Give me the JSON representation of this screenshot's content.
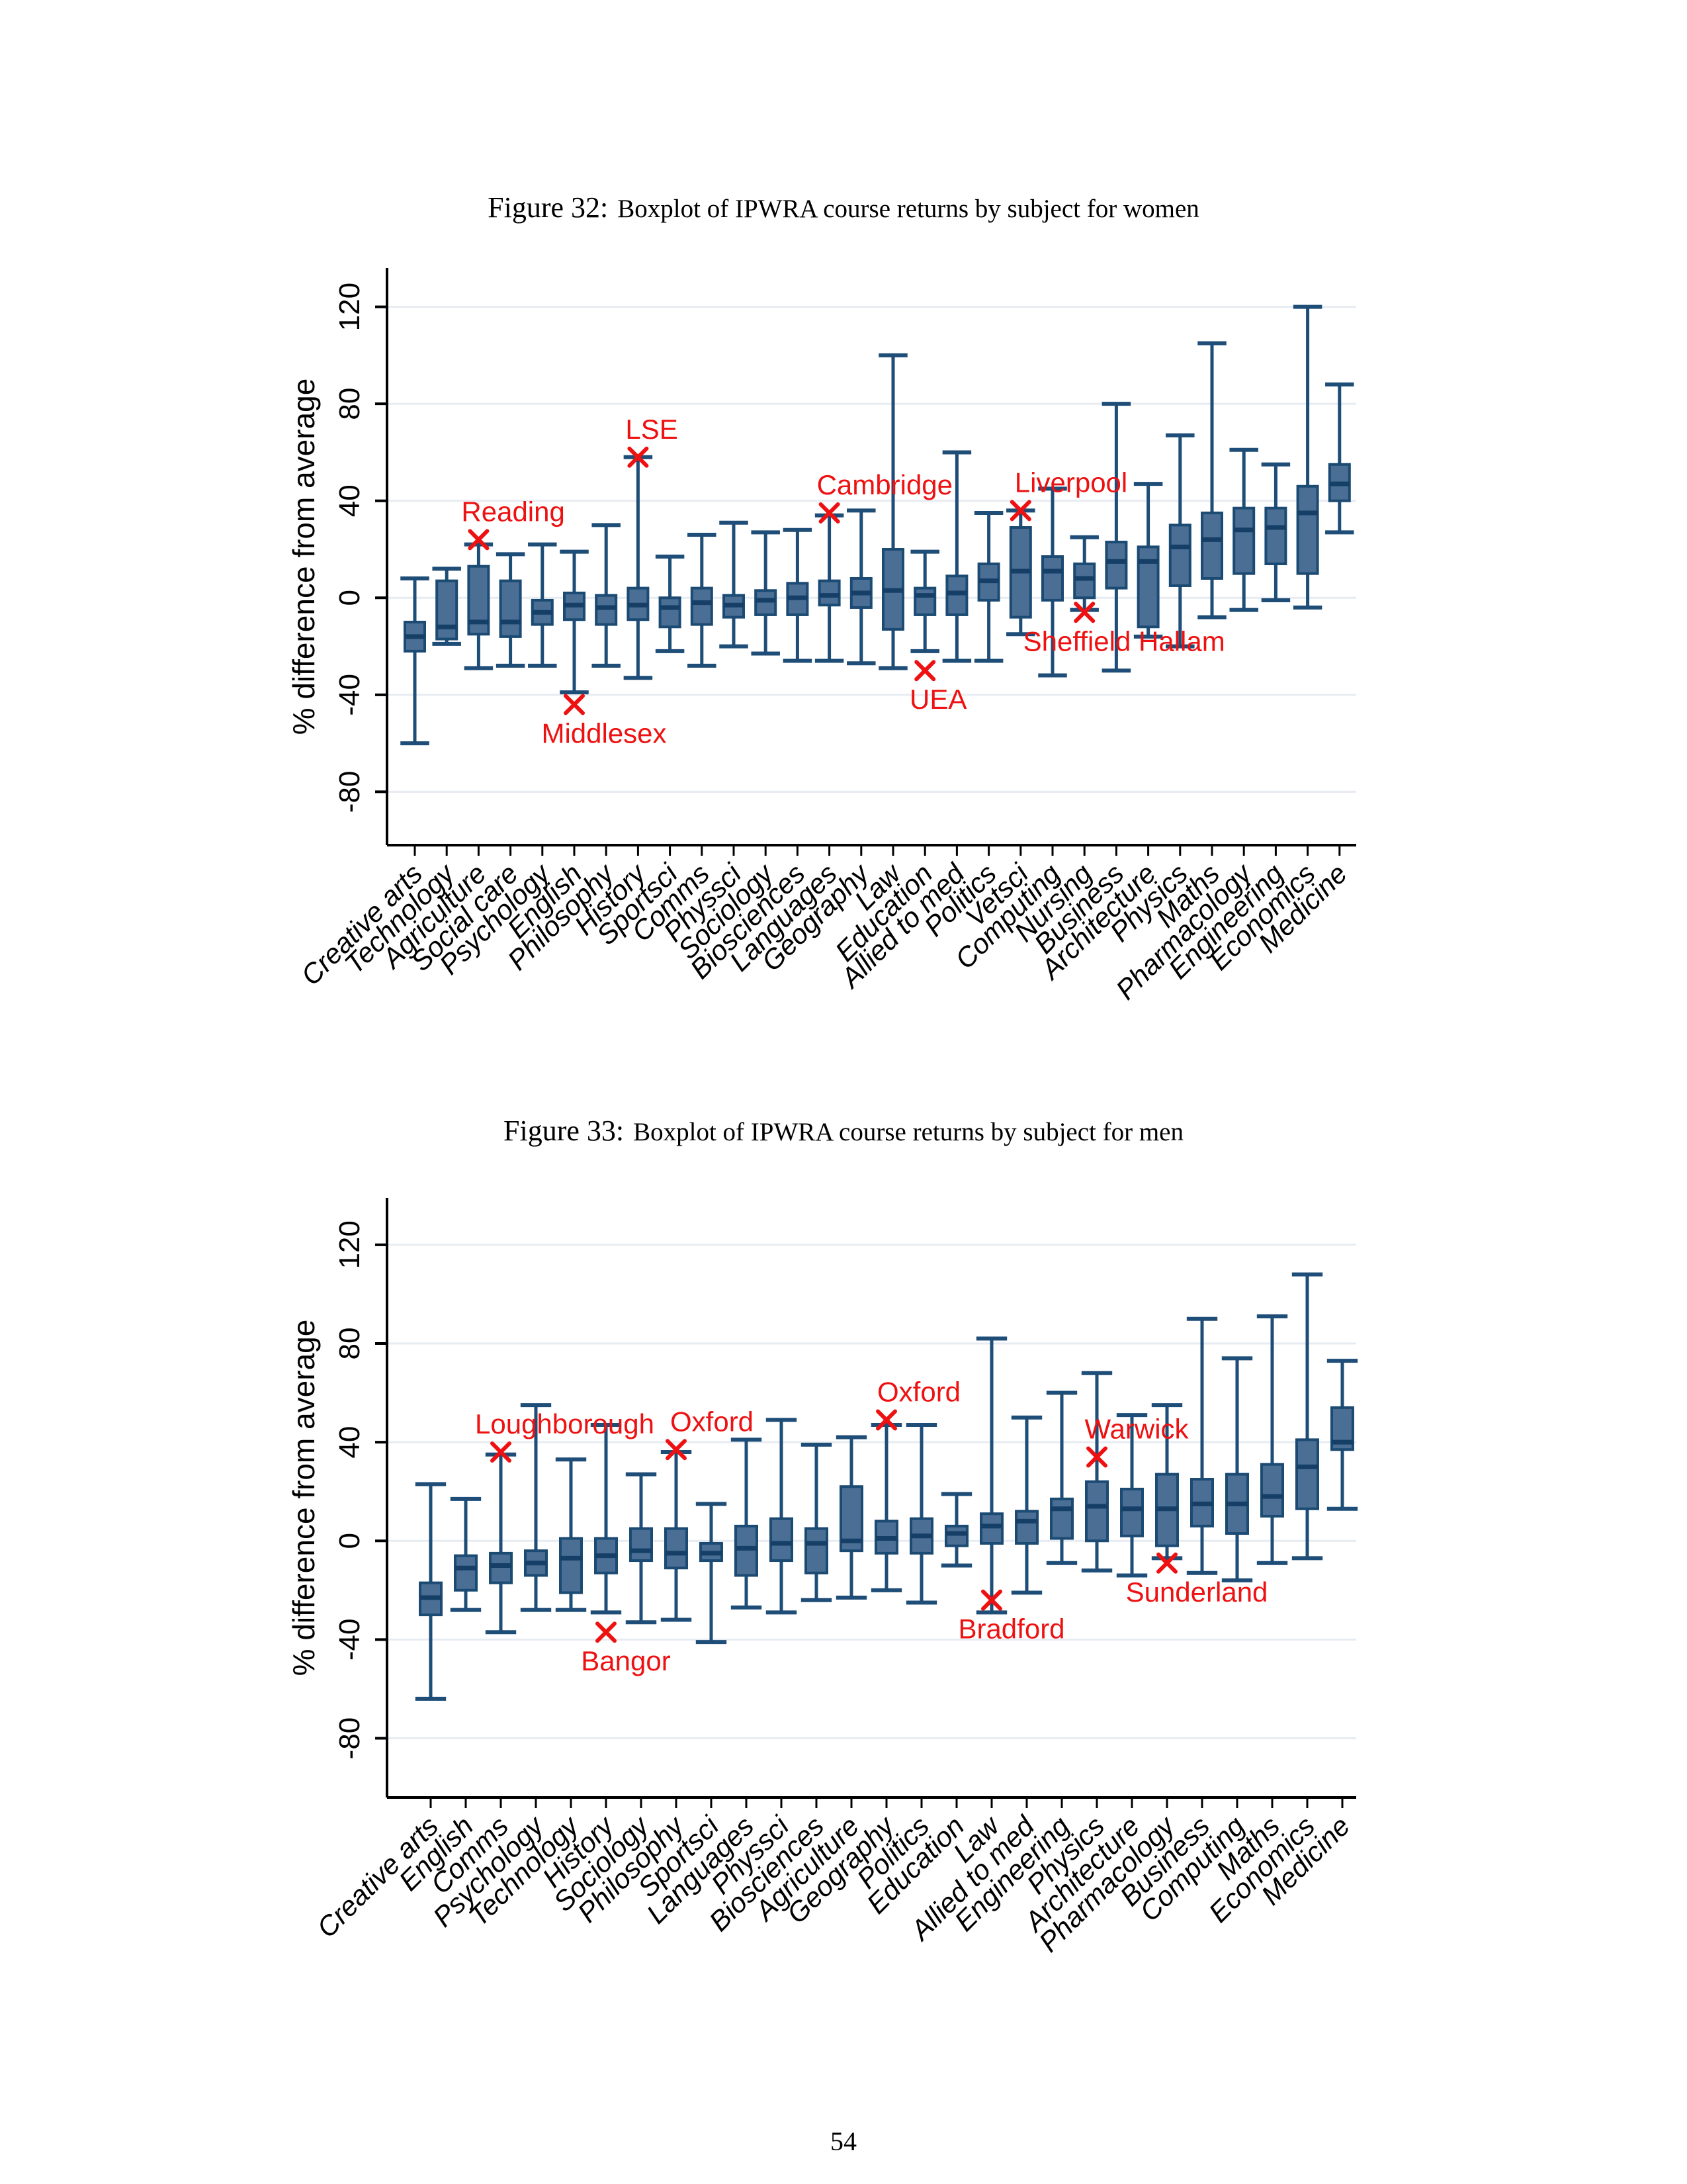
{
  "page": {
    "number": "54"
  },
  "colors": {
    "box_fill": "#4a6e94",
    "box_stroke": "#1b4a73",
    "median": "#153f66",
    "whisker": "#1e4d77",
    "gridline": "#e7ecf2",
    "axis": "#000000",
    "annotation": "#ee1111",
    "text": "#000000"
  },
  "figures": [
    {
      "caption_label": "Figure 32:",
      "caption_text": "Boxplot of IPWRA course returns by subject for women"
    },
    {
      "caption_label": "Figure 33:",
      "caption_text": "Boxplot of IPWRA course returns by subject for men"
    }
  ],
  "chart_data": [
    {
      "type": "boxplot",
      "title": "Figure 32: Boxplot of IPWRA course returns by subject for women",
      "xlabel": "",
      "ylabel": "% difference from average",
      "yticks": [
        120,
        80,
        40,
        0,
        -40,
        -80
      ],
      "ylim": [
        -102,
        136
      ],
      "grid": true,
      "legend": "none",
      "categories": [
        "Creative arts",
        "Technology",
        "Agriculture",
        "Social care",
        "Psychology",
        "English",
        "Philosophy",
        "History",
        "Sportsci",
        "Comms",
        "Physsci",
        "Sociology",
        "Biosciences",
        "Languages",
        "Geography",
        "Law",
        "Education",
        "Allied to med",
        "Politics",
        "Vetsci",
        "Computing",
        "Nursing",
        "Business",
        "Architecture",
        "Physics",
        "Maths",
        "Pharmacology",
        "Engineering",
        "Economics",
        "Medicine"
      ],
      "boxes": [
        {
          "low": -60,
          "q1": -22,
          "median": -16,
          "q3": -10,
          "high": 8
        },
        {
          "low": -19,
          "q1": -17,
          "median": -12,
          "q3": 7,
          "high": 12
        },
        {
          "low": -29,
          "q1": -15,
          "median": -10,
          "q3": 13,
          "high": 22
        },
        {
          "low": -28,
          "q1": -16,
          "median": -10,
          "q3": 7,
          "high": 18
        },
        {
          "low": -28,
          "q1": -11,
          "median": -6,
          "q3": -1,
          "high": 22
        },
        {
          "low": -39,
          "q1": -9,
          "median": -3,
          "q3": 2,
          "high": 19
        },
        {
          "low": -28,
          "q1": -11,
          "median": -4,
          "q3": 1,
          "high": 30
        },
        {
          "low": -33,
          "q1": -9,
          "median": -3,
          "q3": 4,
          "high": 58
        },
        {
          "low": -22,
          "q1": -12,
          "median": -4,
          "q3": 0,
          "high": 17
        },
        {
          "low": -28,
          "q1": -11,
          "median": -2,
          "q3": 4,
          "high": 26
        },
        {
          "low": -20,
          "q1": -8,
          "median": -3,
          "q3": 1,
          "high": 31
        },
        {
          "low": -23,
          "q1": -7,
          "median": -1,
          "q3": 3,
          "high": 27
        },
        {
          "low": -26,
          "q1": -7,
          "median": 0,
          "q3": 6,
          "high": 28
        },
        {
          "low": -26,
          "q1": -3,
          "median": 1,
          "q3": 7,
          "high": 34
        },
        {
          "low": -27,
          "q1": -4,
          "median": 2,
          "q3": 8,
          "high": 36
        },
        {
          "low": -29,
          "q1": -13,
          "median": 3,
          "q3": 20,
          "high": 100
        },
        {
          "low": -22,
          "q1": -7,
          "median": 1,
          "q3": 4,
          "high": 19
        },
        {
          "low": -26,
          "q1": -7,
          "median": 2,
          "q3": 9,
          "high": 60
        },
        {
          "low": -26,
          "q1": -1,
          "median": 7,
          "q3": 14,
          "high": 35
        },
        {
          "low": -15,
          "q1": -8,
          "median": 11,
          "q3": 29,
          "high": 36
        },
        {
          "low": -32,
          "q1": -1,
          "median": 11,
          "q3": 17,
          "high": 45
        },
        {
          "low": -5,
          "q1": 0,
          "median": 8,
          "q3": 14,
          "high": 25
        },
        {
          "low": -30,
          "q1": 4,
          "median": 15,
          "q3": 23,
          "high": 80
        },
        {
          "low": -16,
          "q1": -12,
          "median": 15,
          "q3": 21,
          "high": 47
        },
        {
          "low": -20,
          "q1": 5,
          "median": 21,
          "q3": 30,
          "high": 67
        },
        {
          "low": -8,
          "q1": 8,
          "median": 24,
          "q3": 35,
          "high": 105
        },
        {
          "low": -5,
          "q1": 10,
          "median": 28,
          "q3": 37,
          "high": 61
        },
        {
          "low": -1,
          "q1": 14,
          "median": 29,
          "q3": 37,
          "high": 55
        },
        {
          "low": -4,
          "q1": 10,
          "median": 35,
          "q3": 46,
          "high": 120
        },
        {
          "low": 27,
          "q1": 40,
          "median": 47,
          "q3": 55,
          "high": 88
        }
      ],
      "outliers": [
        {
          "label": "Reading",
          "category": "Agriculture",
          "value": 24,
          "side": "above",
          "align": "start",
          "dx": -12
        },
        {
          "label": "Middlesex",
          "category": "English",
          "value": -44,
          "side": "below",
          "align": "middle",
          "dx": 45
        },
        {
          "label": "LSE",
          "category": "History",
          "value": 58,
          "side": "above",
          "align": "start",
          "dx": -5
        },
        {
          "label": "Cambridge",
          "category": "Languages",
          "value": 35,
          "side": "above",
          "align": "start",
          "dx": -5
        },
        {
          "label": "UEA",
          "category": "Education",
          "value": -30,
          "side": "below",
          "align": "middle",
          "dx": 20
        },
        {
          "label": "Liverpool",
          "category": "Vetsci",
          "value": 36,
          "side": "above",
          "align": "start",
          "dx": 5
        },
        {
          "label": "Sheffield Hallam",
          "category": "Nursing",
          "value": -6,
          "side": "below",
          "align": "middle",
          "dx": 60
        }
      ]
    },
    {
      "type": "boxplot",
      "title": "Figure 33: Boxplot of IPWRA course returns by subject for men",
      "xlabel": "",
      "ylabel": "% difference from average",
      "yticks": [
        120,
        80,
        40,
        0,
        -40,
        -80
      ],
      "ylim": [
        -104,
        139
      ],
      "grid": true,
      "legend": "none",
      "categories": [
        "Creative arts",
        "English",
        "Comms",
        "Psychology",
        "Technology",
        "History",
        "Sociology",
        "Philosophy",
        "Sportsci",
        "Languages",
        "Physsci",
        "Biosciences",
        "Agriculture",
        "Geography",
        "Politics",
        "Education",
        "Law",
        "Allied to med",
        "Engineering",
        "Physics",
        "Architecture",
        "Pharmacology",
        "Business",
        "Computing",
        "Maths",
        "Economics",
        "Medicine"
      ],
      "boxes": [
        {
          "low": -64,
          "q1": -30,
          "median": -23,
          "q3": -17,
          "high": 23
        },
        {
          "low": -28,
          "q1": -20,
          "median": -11,
          "q3": -6,
          "high": 17
        },
        {
          "low": -37,
          "q1": -17,
          "median": -10,
          "q3": -5,
          "high": 35
        },
        {
          "low": -28,
          "q1": -14,
          "median": -9,
          "q3": -4,
          "high": 55
        },
        {
          "low": -28,
          "q1": -21,
          "median": -7,
          "q3": 1,
          "high": 33
        },
        {
          "low": -29,
          "q1": -13,
          "median": -6,
          "q3": 1,
          "high": 47
        },
        {
          "low": -33,
          "q1": -8,
          "median": -4,
          "q3": 5,
          "high": 27
        },
        {
          "low": -32,
          "q1": -11,
          "median": -5,
          "q3": 5,
          "high": 36
        },
        {
          "low": -41,
          "q1": -8,
          "median": -5,
          "q3": -1,
          "high": 15
        },
        {
          "low": -27,
          "q1": -14,
          "median": -3,
          "q3": 6,
          "high": 41
        },
        {
          "low": -29,
          "q1": -8,
          "median": -1,
          "q3": 9,
          "high": 49
        },
        {
          "low": -24,
          "q1": -13,
          "median": -1,
          "q3": 5,
          "high": 39
        },
        {
          "low": -23,
          "q1": -4,
          "median": 0,
          "q3": 22,
          "high": 42
        },
        {
          "low": -20,
          "q1": -5,
          "median": 1,
          "q3": 8,
          "high": 47
        },
        {
          "low": -25,
          "q1": -5,
          "median": 2,
          "q3": 9,
          "high": 47
        },
        {
          "low": -10,
          "q1": -2,
          "median": 3,
          "q3": 6,
          "high": 19
        },
        {
          "low": -29,
          "q1": -1,
          "median": 6,
          "q3": 11,
          "high": 82
        },
        {
          "low": -21,
          "q1": -1,
          "median": 8,
          "q3": 12,
          "high": 50
        },
        {
          "low": -9,
          "q1": 1,
          "median": 13,
          "q3": 17,
          "high": 60
        },
        {
          "low": -12,
          "q1": 0,
          "median": 14,
          "q3": 24,
          "high": 68
        },
        {
          "low": -14,
          "q1": 2,
          "median": 13,
          "q3": 21,
          "high": 51
        },
        {
          "low": -7,
          "q1": -2,
          "median": 13,
          "q3": 27,
          "high": 55
        },
        {
          "low": -13,
          "q1": 6,
          "median": 15,
          "q3": 25,
          "high": 90
        },
        {
          "low": -16,
          "q1": 3,
          "median": 15,
          "q3": 27,
          "high": 74
        },
        {
          "low": -9,
          "q1": 10,
          "median": 18,
          "q3": 31,
          "high": 91
        },
        {
          "low": -7,
          "q1": 13,
          "median": 30,
          "q3": 41,
          "high": 108
        },
        {
          "low": 13,
          "q1": 37,
          "median": 40,
          "q3": 54,
          "high": 73
        }
      ],
      "outliers": [
        {
          "label": "Loughborough",
          "category": "Comms",
          "value": 36,
          "side": "above",
          "align": "start",
          "dx": -25
        },
        {
          "label": "Bangor",
          "category": "History",
          "value": -37,
          "side": "below",
          "align": "middle",
          "dx": 30
        },
        {
          "label": "Oxford",
          "category": "Philosophy",
          "value": 37,
          "side": "above",
          "align": "start",
          "dx": 5
        },
        {
          "label": "Oxford",
          "category": "Geography",
          "value": 49,
          "side": "above",
          "align": "start",
          "dx": 0
        },
        {
          "label": "Bradford",
          "category": "Law",
          "value": -24,
          "side": "below",
          "align": "middle",
          "dx": 30
        },
        {
          "label": "Warwick",
          "category": "Physics",
          "value": 34,
          "side": "above",
          "align": "middle",
          "dx": 60
        },
        {
          "label": "Sunderland",
          "category": "Pharmacology",
          "value": -9,
          "side": "below",
          "align": "middle",
          "dx": 45
        }
      ]
    }
  ]
}
